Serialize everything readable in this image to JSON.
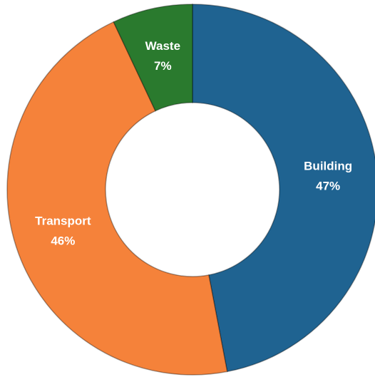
{
  "chart_data": {
    "type": "donut",
    "categories": [
      "Building",
      "Transport",
      "Waste"
    ],
    "values": [
      47,
      46,
      7
    ],
    "value_labels": [
      "47%",
      "46%",
      "7%"
    ],
    "colors": [
      "#1f6391",
      "#f5823a",
      "#2a7a2e"
    ]
  }
}
